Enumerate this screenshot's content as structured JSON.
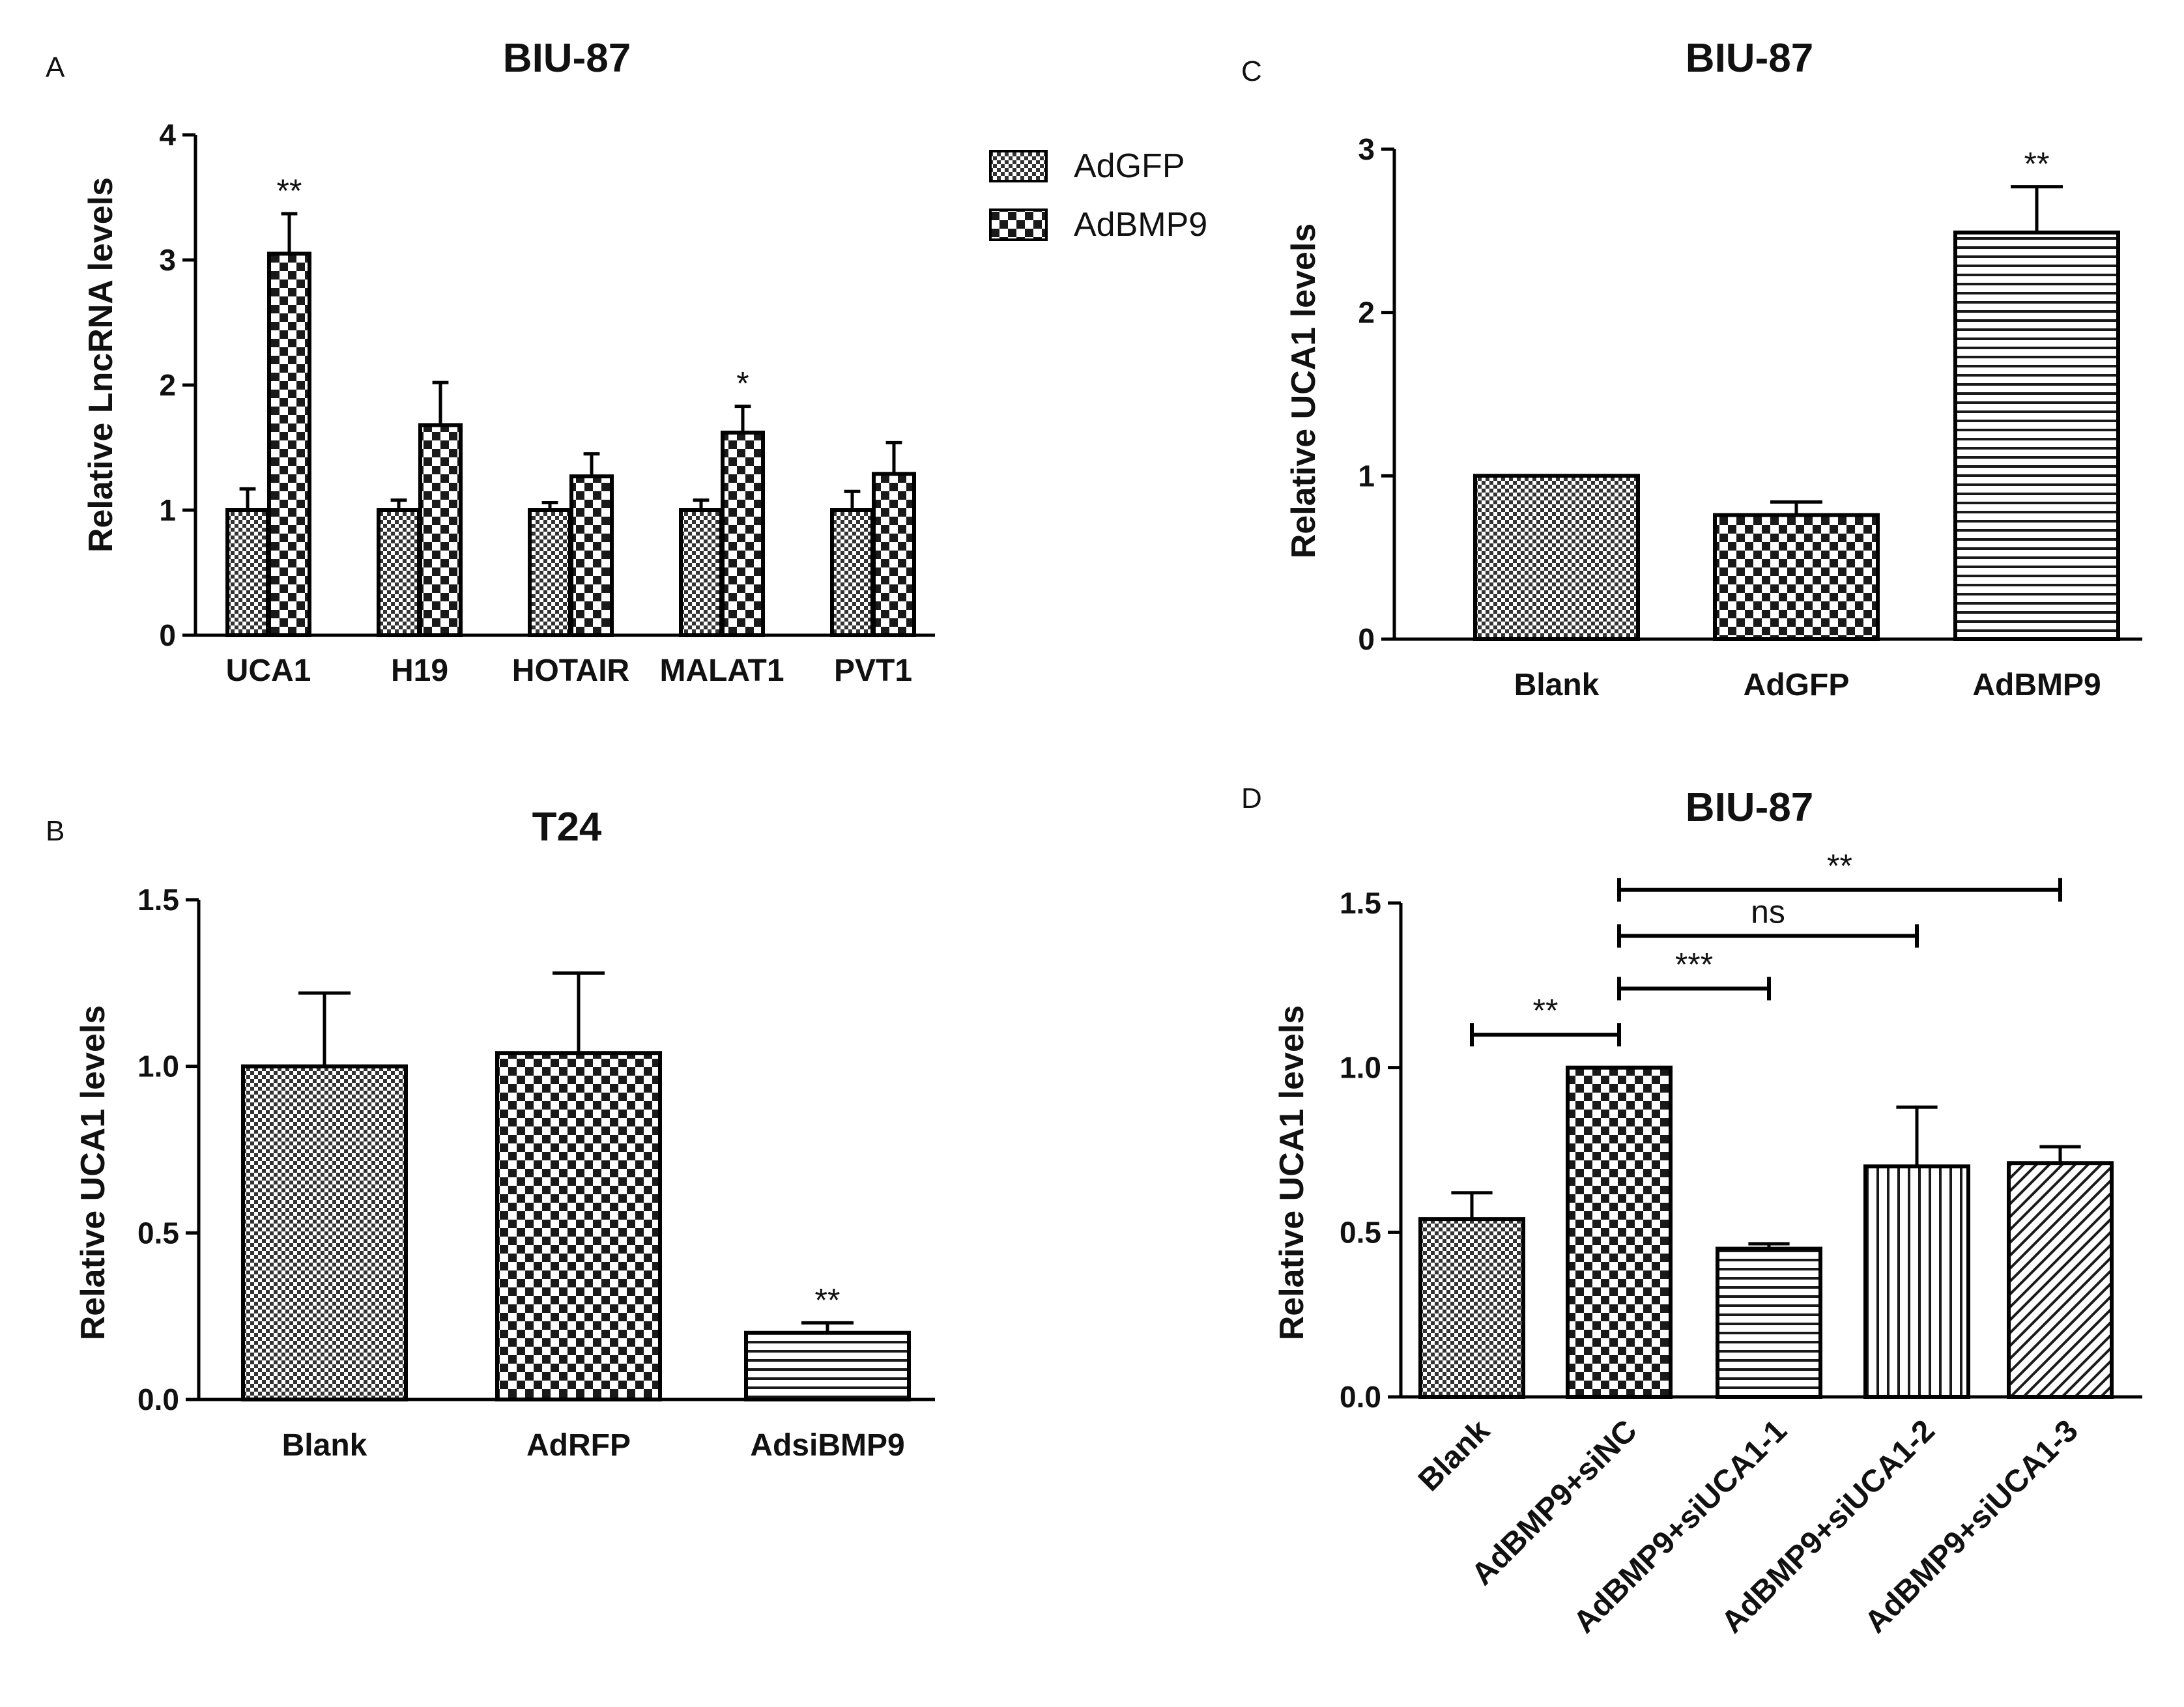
{
  "chart_data": [
    {
      "panel": "A",
      "type": "bar",
      "title": "BIU-87",
      "xlabel": "",
      "ylabel": "Relative LncRNA levels",
      "ylim": [
        0,
        4
      ],
      "yticks": [
        "0",
        "1",
        "2",
        "3",
        "4"
      ],
      "categories": [
        "UCA1",
        "H19",
        "HOTAIR",
        "MALAT1",
        "PVT1"
      ],
      "series": [
        {
          "name": "AdGFP",
          "pattern": "fine-check",
          "values": [
            1.0,
            1.0,
            1.0,
            1.0,
            1.0
          ],
          "errors": [
            0.17,
            0.08,
            0.06,
            0.08,
            0.15
          ]
        },
        {
          "name": "AdBMP9",
          "pattern": "coarse-check",
          "values": [
            3.05,
            1.68,
            1.27,
            1.62,
            1.29
          ],
          "errors": [
            0.32,
            0.34,
            0.18,
            0.21,
            0.25
          ]
        }
      ],
      "annotations": [
        {
          "category": "UCA1",
          "series": "AdBMP9",
          "text": "**"
        },
        {
          "category": "MALAT1",
          "series": "AdBMP9",
          "text": "*"
        }
      ],
      "legend": {
        "position": "top-right",
        "entries": [
          "AdGFP",
          "AdBMP9"
        ]
      }
    },
    {
      "panel": "B",
      "type": "bar",
      "title": "T24",
      "xlabel": "",
      "ylabel": "Relative UCA1 levels",
      "ylim": [
        0,
        1.5
      ],
      "yticks": [
        "0.0",
        "0.5",
        "1.0",
        "1.5"
      ],
      "categories": [
        "Blank",
        "AdRFP",
        "AdsiBMP9"
      ],
      "values": [
        1.0,
        1.04,
        0.2
      ],
      "errors": [
        0.22,
        0.24,
        0.03
      ],
      "patterns": [
        "fine-check",
        "coarse-check",
        "horizontal"
      ],
      "annotations": [
        {
          "category": "AdsiBMP9",
          "text": "**"
        }
      ]
    },
    {
      "panel": "C",
      "type": "bar",
      "title": "BIU-87",
      "xlabel": "",
      "ylabel": "Relative UCA1 levels",
      "ylim": [
        0,
        3
      ],
      "yticks": [
        "0",
        "1",
        "2",
        "3"
      ],
      "categories": [
        "Blank",
        "AdGFP",
        "AdBMP9"
      ],
      "values": [
        1.0,
        0.76,
        2.49
      ],
      "errors": [
        0.0,
        0.08,
        0.28
      ],
      "patterns": [
        "fine-check",
        "coarse-check",
        "horizontal"
      ],
      "annotations": [
        {
          "category": "AdBMP9",
          "text": "**"
        }
      ]
    },
    {
      "panel": "D",
      "type": "bar",
      "title": "BIU-87",
      "xlabel": "",
      "ylabel": "Relative UCA1 levels",
      "ylim": [
        0,
        1.5
      ],
      "yticks": [
        "0.0",
        "0.5",
        "1.0",
        "1.5"
      ],
      "categories": [
        "Blank",
        "AdBMP9+siNC",
        "AdBMP9+siUCA1-1",
        "AdBMP9+siUCA1-2",
        "AdBMP9+siUCA1-3"
      ],
      "values": [
        0.54,
        1.0,
        0.45,
        0.7,
        0.71
      ],
      "errors": [
        0.08,
        0.0,
        0.015,
        0.18,
        0.05
      ],
      "patterns": [
        "fine-check",
        "coarse-check",
        "horizontal",
        "vertical",
        "diagonal"
      ],
      "comparisons": [
        {
          "from": 0,
          "to": 1,
          "level": 1.1,
          "text": "**"
        },
        {
          "from": 1,
          "to": 2,
          "level": 1.24,
          "text": "***"
        },
        {
          "from": 1,
          "to": 3,
          "level": 1.4,
          "text": "ns"
        },
        {
          "from": 1,
          "to": 4,
          "level": 1.54,
          "text": "**"
        }
      ]
    }
  ]
}
